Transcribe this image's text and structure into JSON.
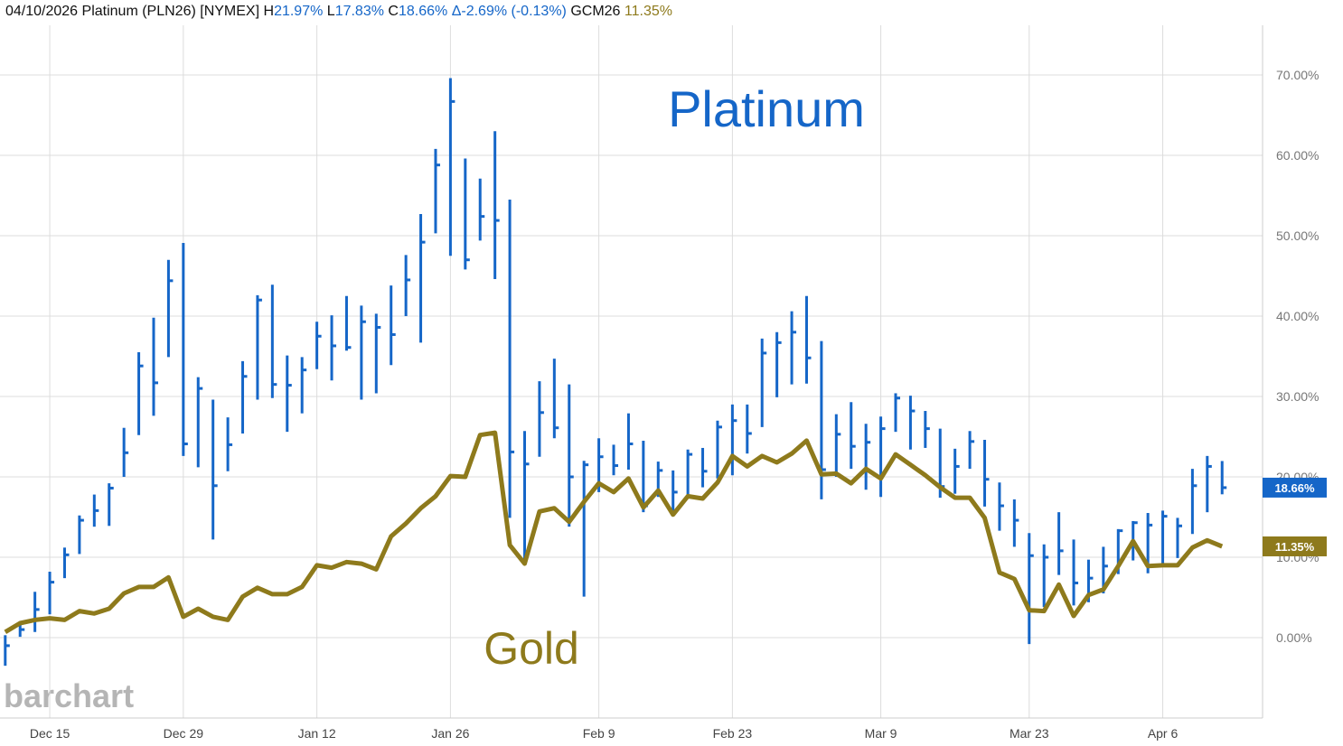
{
  "chart_data": {
    "type": "hlc",
    "header": {
      "date": "04/10/2026",
      "symbol": "Platinum (PLN26) [NYMEX]",
      "high_label": "H",
      "high": "21.97%",
      "low_label": "L",
      "low": "17.83%",
      "close_label": "C",
      "close": "18.66%",
      "change": "Δ-2.69% (-0.13%)",
      "compare_symbol": "GCM26",
      "compare_value": "11.35%"
    },
    "watermark": "barchart",
    "categories": [
      null,
      null,
      null,
      "Dec 15",
      null,
      null,
      null,
      null,
      null,
      null,
      null,
      null,
      "Dec 29",
      null,
      null,
      null,
      null,
      null,
      null,
      null,
      null,
      "Jan 12",
      null,
      null,
      null,
      null,
      null,
      null,
      null,
      null,
      "Jan 26",
      null,
      null,
      null,
      null,
      null,
      null,
      null,
      null,
      null,
      "Feb 9",
      null,
      null,
      null,
      null,
      null,
      null,
      null,
      null,
      "Feb 23",
      null,
      null,
      null,
      null,
      null,
      null,
      null,
      null,
      null,
      "Mar 9",
      null,
      null,
      null,
      null,
      null,
      null,
      null,
      null,
      null,
      "Mar 23",
      null,
      null,
      null,
      null,
      null,
      null,
      null,
      null,
      "Apr 6",
      null,
      null,
      null,
      null
    ],
    "series": [
      {
        "name": "Platinum",
        "type": "hlc",
        "color": "#1566c8",
        "high": [
          0.3,
          2.0,
          5.7,
          8.2,
          11.2,
          15.2,
          17.8,
          19.2,
          26.1,
          35.5,
          39.8,
          47.0,
          49.1,
          32.4,
          29.6,
          27.4,
          34.4,
          42.6,
          43.9,
          35.1,
          34.9,
          39.3,
          40.1,
          42.5,
          41.3,
          40.3,
          43.8,
          47.6,
          52.7,
          60.8,
          69.6,
          59.6,
          57.1,
          63.0,
          54.5,
          25.7,
          31.9,
          34.7,
          31.5,
          22.0,
          24.8,
          24.0,
          27.9,
          24.5,
          21.9,
          20.8,
          23.4,
          23.6,
          27.0,
          29.0,
          29.0,
          37.2,
          38.0,
          40.6,
          42.5,
          36.9,
          27.8,
          29.3,
          26.6,
          27.5,
          30.4,
          30.1,
          28.2,
          26.0,
          23.5,
          25.7,
          24.6,
          19.3,
          17.2,
          13.0,
          11.6,
          15.6,
          12.2,
          9.7,
          11.3,
          13.5,
          14.5,
          15.5,
          15.8,
          14.9,
          21.0,
          22.6,
          21.97
        ],
        "low": [
          -3.5,
          0.1,
          0.7,
          2.9,
          7.4,
          10.4,
          13.8,
          13.9,
          20.0,
          25.2,
          27.6,
          34.9,
          22.6,
          21.2,
          12.2,
          20.7,
          25.4,
          29.6,
          29.8,
          25.6,
          27.9,
          33.4,
          32.0,
          35.7,
          29.6,
          30.4,
          33.9,
          40.0,
          36.7,
          50.3,
          47.5,
          45.8,
          49.4,
          44.6,
          14.9,
          9.2,
          22.5,
          24.8,
          13.8,
          5.1,
          18.1,
          20.2,
          20.9,
          15.6,
          17.5,
          15.2,
          17.5,
          18.7,
          19.8,
          20.2,
          22.9,
          26.2,
          29.9,
          31.5,
          31.6,
          17.2,
          20.0,
          21.0,
          18.4,
          17.5,
          25.6,
          23.4,
          23.6,
          17.4,
          17.9,
          21.0,
          16.3,
          13.3,
          11.3,
          -0.8,
          3.8,
          7.8,
          4.0,
          4.4,
          5.5,
          7.9,
          9.6,
          8.0,
          9.1,
          9.9,
          12.9,
          15.6,
          17.83
        ],
        "close": [
          -1.0,
          1.0,
          3.5,
          6.9,
          10.3,
          14.6,
          15.8,
          18.6,
          23.0,
          33.8,
          31.7,
          44.4,
          24.1,
          31.0,
          18.9,
          24.0,
          32.5,
          42.0,
          31.5,
          31.4,
          33.3,
          37.5,
          36.3,
          36.1,
          39.3,
          38.6,
          37.7,
          44.5,
          49.2,
          58.8,
          66.7,
          47.0,
          52.4,
          51.9,
          23.1,
          21.6,
          28.0,
          26.1,
          20.0,
          21.5,
          22.5,
          21.4,
          24.1,
          16.4,
          20.8,
          18.1,
          22.8,
          20.7,
          26.2,
          27.0,
          25.4,
          35.4,
          36.7,
          38.0,
          34.8,
          20.9,
          25.3,
          23.8,
          24.3,
          26.0,
          29.8,
          28.2,
          26.0,
          18.8,
          21.3,
          24.4,
          19.7,
          16.4,
          14.6,
          10.2,
          10.0,
          10.8,
          6.8,
          7.4,
          8.9,
          13.3,
          14.3,
          14.0,
          15.1,
          13.9,
          18.9,
          21.3,
          18.66
        ]
      },
      {
        "name": "Gold",
        "type": "line",
        "color": "#8e7a1c",
        "values": [
          0.7,
          1.8,
          2.2,
          2.4,
          2.2,
          3.3,
          3.0,
          3.6,
          5.5,
          6.3,
          6.3,
          7.5,
          2.6,
          3.6,
          2.6,
          2.2,
          5.1,
          6.2,
          5.4,
          5.4,
          6.3,
          9.0,
          8.7,
          9.4,
          9.2,
          8.5,
          12.6,
          14.2,
          16.1,
          17.6,
          20.1,
          20.0,
          25.2,
          25.5,
          11.5,
          9.2,
          15.7,
          16.1,
          14.4,
          16.9,
          19.2,
          18.1,
          19.8,
          16.2,
          18.3,
          15.3,
          17.6,
          17.3,
          19.3,
          22.6,
          21.3,
          22.6,
          21.8,
          22.9,
          24.5,
          20.3,
          20.4,
          19.2,
          21.0,
          19.8,
          22.8,
          21.5,
          20.2,
          18.7,
          17.4,
          17.4,
          14.9,
          8.1,
          7.3,
          3.4,
          3.3,
          6.6,
          2.7,
          5.3,
          6.0,
          8.9,
          12.0,
          8.9,
          9.0,
          9.0,
          11.2,
          12.1,
          11.35
        ]
      }
    ],
    "ylim": [
      -10,
      75
    ],
    "yticks": [
      {
        "value": 0,
        "label": "0.00%"
      },
      {
        "value": 10,
        "label": "10.00%"
      },
      {
        "value": 20,
        "label": "20.00%"
      },
      {
        "value": 30,
        "label": "30.00%"
      },
      {
        "value": 40,
        "label": "40.00%"
      },
      {
        "value": 50,
        "label": "50.00%"
      },
      {
        "value": 60,
        "label": "60.00%"
      },
      {
        "value": 70,
        "label": "70.00%"
      }
    ],
    "grid": true
  }
}
